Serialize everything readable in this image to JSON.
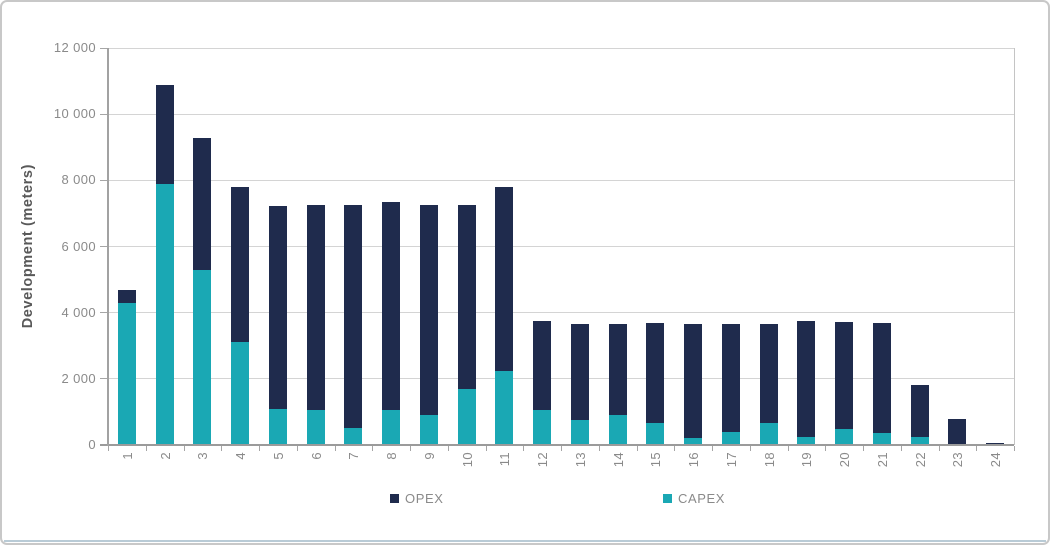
{
  "figure": {
    "border_color": "#c8c8c8",
    "bottom_accent_color": "#b9cbd6",
    "background": "#ffffff"
  },
  "chart_data": {
    "type": "bar",
    "stacked": true,
    "title": "",
    "xlabel": "",
    "ylabel": "Development (meters)",
    "ylim": [
      0,
      12000
    ],
    "ytick_step": 2000,
    "ytick_labels": [
      "0",
      "2 000",
      "4 000",
      "6 000",
      "8 000",
      "10 000",
      "12 000"
    ],
    "grid": true,
    "legend_position": "bottom",
    "categories": [
      "1",
      "2",
      "3",
      "4",
      "5",
      "6",
      "7",
      "8",
      "9",
      "10",
      "11",
      "12",
      "13",
      "14",
      "15",
      "16",
      "17",
      "18",
      "19",
      "20",
      "21",
      "22",
      "23",
      "24"
    ],
    "series": [
      {
        "name": "OPEX",
        "color": "#1f2b4d",
        "values": [
          400,
          3000,
          4000,
          4700,
          6150,
          6200,
          6750,
          6300,
          6350,
          5550,
          5550,
          2700,
          2900,
          2750,
          3025,
          3460,
          3250,
          3000,
          3500,
          3225,
          3325,
          1570,
          800,
          60
        ]
      },
      {
        "name": "CAPEX",
        "color": "#1aa8b4",
        "values": [
          4300,
          7900,
          5300,
          3100,
          1100,
          1050,
          500,
          1050,
          900,
          1700,
          2250,
          1050,
          750,
          900,
          675,
          200,
          400,
          650,
          250,
          475,
          375,
          230,
          0,
          0
        ]
      }
    ],
    "stack_bottom_to_top": [
      "CAPEX",
      "OPEX"
    ],
    "axis_colors": {
      "gridline": "#d4d4d4",
      "axis_line": "#9b9b9b",
      "tick_label": "#8a8a8a",
      "axis_title": "#595959"
    }
  }
}
